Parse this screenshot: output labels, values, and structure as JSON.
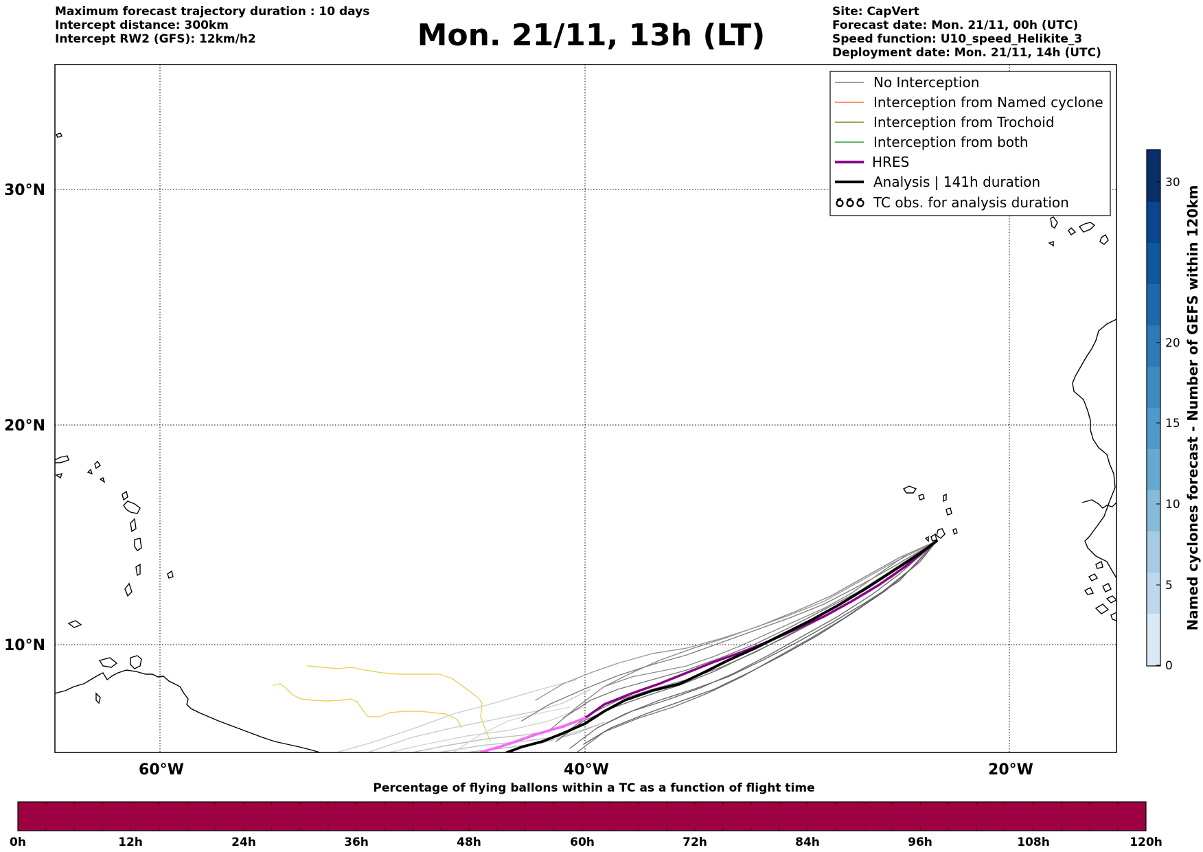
{
  "header": {
    "left_lines": [
      "Maximum forecast trajectory duration : 10 days",
      "Intercept distance: 300km",
      "Intercept RW2 (GFS):  12km/h2"
    ],
    "right_lines": [
      "Site: CapVert",
      "Forecast date: Mon. 21/11, 00h (UTC)",
      "Speed function: U10_speed_Helikite_3",
      "Deployment date: Mon. 21/11, 14h (UTC)"
    ],
    "title": "Mon. 21/11, 13h (LT)"
  },
  "map": {
    "lat_labels": [
      "30°N",
      "20°N",
      "10°N"
    ],
    "lon_labels": [
      "60°W",
      "40°W",
      "20°W"
    ],
    "legend": [
      {
        "label": "No Interception",
        "color": "#808080",
        "icon": "line"
      },
      {
        "label": "Interception from Named cyclone",
        "color": "#ff6a3d",
        "icon": "line"
      },
      {
        "label": "Interception from Trochoid",
        "color": "#8b7d2a",
        "icon": "line"
      },
      {
        "label": "Interception from both",
        "color": "#2ca02c",
        "icon": "line"
      },
      {
        "label": "HRES",
        "color": "#8b008b",
        "icon": "thick-line"
      },
      {
        "label": "Analysis | 141h duration",
        "color": "#000000",
        "icon": "thick-line"
      },
      {
        "label": "TC obs. for analysis duration",
        "color": "#000000",
        "icon": "cyclone-symbols"
      }
    ]
  },
  "cyclone_colorbar": {
    "label": "Named cyclones forecast - Number of GEFS within 120km",
    "ticks": [
      "0",
      "5",
      "10",
      "15",
      "20",
      "30"
    ]
  },
  "time_colorbar": {
    "title": "Percentage of flying ballons within a TC as a function of flight time",
    "ticks": [
      "0h",
      "12h",
      "24h",
      "36h",
      "48h",
      "60h",
      "72h",
      "84h",
      "96h",
      "108h",
      "120h"
    ],
    "fill_color": "#9e0142"
  }
}
